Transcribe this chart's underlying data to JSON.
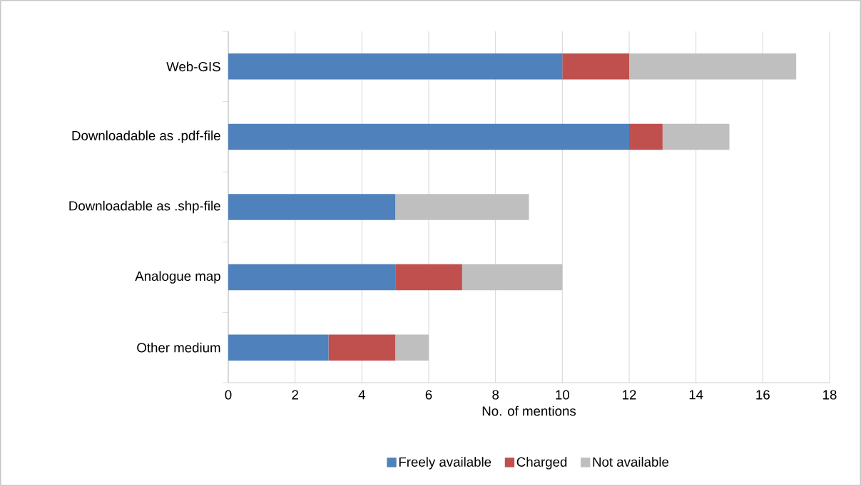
{
  "chart_data": {
    "type": "bar",
    "orientation": "horizontal",
    "stacked": true,
    "categories": [
      "Web-GIS",
      "Downloadable as .pdf-file",
      "Downloadable as .shp-file",
      "Analogue map",
      "Other medium"
    ],
    "series": [
      {
        "name": "Freely available",
        "color": "#4f81bd",
        "values": [
          10,
          12,
          5,
          5,
          3
        ]
      },
      {
        "name": "Charged",
        "color": "#c0504d",
        "values": [
          2,
          1,
          0,
          2,
          2
        ]
      },
      {
        "name": "Not available",
        "color": "#bfbfbf",
        "values": [
          5,
          2,
          4,
          3,
          1
        ]
      }
    ],
    "xlim": [
      0,
      18
    ],
    "xticks": [
      0,
      2,
      4,
      6,
      8,
      10,
      12,
      14,
      16,
      18
    ],
    "xlabel": "No. of mentions",
    "grid": "x",
    "legend": "bottom"
  }
}
